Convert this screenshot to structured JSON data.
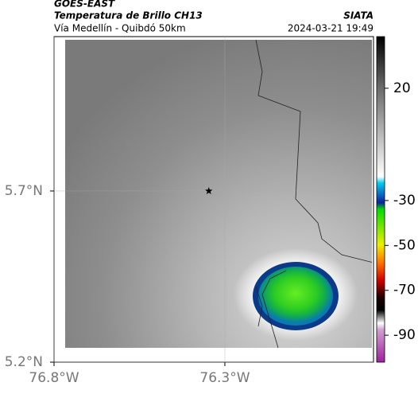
{
  "header": {
    "source": "GOES-EAST",
    "title": "Temperatura de Brillo CH13",
    "brand": "SIATA",
    "subtitle": "Vía Medellín - Quibdó 50km",
    "datetime": "2024-03-21 19:49"
  },
  "map": {
    "xlim": [
      -76.8,
      -75.865
    ],
    "ylim": [
      5.2,
      6.151
    ],
    "xticks": [
      {
        "value": -76.8,
        "label": "76.8°W"
      },
      {
        "value": -76.3,
        "label": "76.3°W"
      }
    ],
    "yticks": [
      {
        "value": 5.2,
        "label": "5.2°N"
      },
      {
        "value": 5.7,
        "label": "5.7°N"
      }
    ],
    "grid": true,
    "marker": {
      "lon": -76.347,
      "lat": 5.7
    }
  },
  "colorbar": {
    "lim": [
      -102,
      43
    ],
    "ticks": [
      20,
      -30,
      -50,
      -70,
      -90
    ]
  }
}
